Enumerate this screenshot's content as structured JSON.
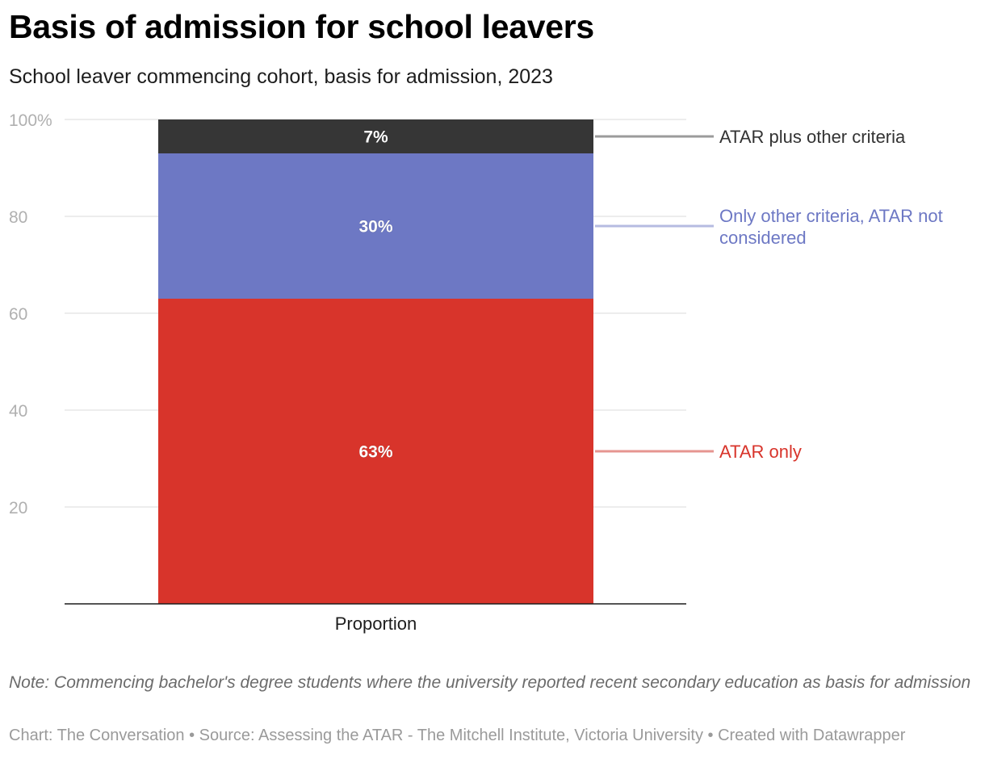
{
  "header": {
    "title": "Basis of admission for school leavers",
    "subtitle": "School leaver commencing cohort, basis for admission, 2023"
  },
  "footer": {
    "note": "Note: Commencing bachelor's degree students where the university reported recent secondary education as basis for admission",
    "credits": "Chart: The Conversation • Source: Assessing the ATAR - The Mitchell Institute, Victoria University • Created with Datawrapper"
  },
  "chart_data": {
    "type": "bar",
    "stacked": true,
    "title": "Basis of admission for school leavers",
    "subtitle": "School leaver commencing cohort, basis for admission, 2023",
    "categories": [
      "Proportion"
    ],
    "series": [
      {
        "name": "ATAR only",
        "values": [
          63
        ],
        "label": "63%",
        "color": "#d8342b",
        "legend_color": "#e69590",
        "legend_text_color": "#d8342b"
      },
      {
        "name": "Only other criteria, ATAR not considered",
        "values": [
          30
        ],
        "label": "30%",
        "color": "#6d78c4",
        "legend_color": "#b6bbe1",
        "legend_text_color": "#6d78c4",
        "legend_lines": [
          "Only other criteria, ATAR not",
          "considered"
        ]
      },
      {
        "name": "ATAR plus other criteria",
        "values": [
          7
        ],
        "label": "7%",
        "color": "#363636",
        "legend_color": "#9b9b9b",
        "legend_text_color": "#333333"
      }
    ],
    "ylim": [
      0,
      100
    ],
    "yticks": [
      {
        "value": 100,
        "label": "100%"
      },
      {
        "value": 80,
        "label": "80"
      },
      {
        "value": 60,
        "label": "60"
      },
      {
        "value": 40,
        "label": "40"
      },
      {
        "value": 20,
        "label": "20"
      }
    ],
    "xlabel": "",
    "ylabel": "",
    "grid": true
  }
}
